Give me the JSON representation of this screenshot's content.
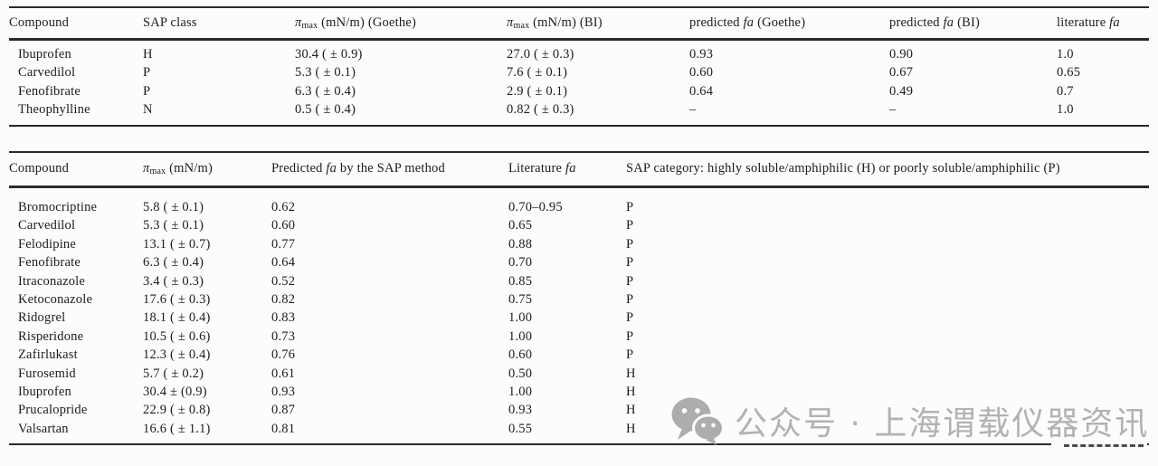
{
  "page": {
    "background": "#fcfcfb",
    "text_color": "#1c1c1c",
    "rule_color": "#2a2a2a"
  },
  "table1": {
    "headers": [
      [
        {
          "t": "Compound"
        }
      ],
      [
        {
          "t": "SAP class"
        }
      ],
      [
        {
          "t": "π",
          "i": true
        },
        {
          "t": "max",
          "sub": true
        },
        {
          "t": " (mN/m) (Goethe)"
        }
      ],
      [
        {
          "t": "π",
          "i": true
        },
        {
          "t": "max",
          "sub": true
        },
        {
          "t": " (mN/m) (BI)"
        }
      ],
      [
        {
          "t": "predicted "
        },
        {
          "t": "fa",
          "i": true
        },
        {
          "t": " (Goethe)"
        }
      ],
      [
        {
          "t": "predicted "
        },
        {
          "t": "fa",
          "i": true
        },
        {
          "t": " (BI)"
        }
      ],
      [
        {
          "t": "literature "
        },
        {
          "t": "fa",
          "i": true
        }
      ]
    ],
    "rows": [
      [
        "Ibuprofen",
        "H",
        "30.4 ( ± 0.9)",
        "27.0 ( ± 0.3)",
        "0.93",
        "0.90",
        "1.0"
      ],
      [
        "Carvedilol",
        "P",
        "5.3 ( ± 0.1)",
        "7.6 ( ± 0.1)",
        "0.60",
        "0.67",
        "0.65"
      ],
      [
        "Fenofibrate",
        "P",
        "6.3 ( ± 0.4)",
        "2.9 ( ± 0.1)",
        "0.64",
        "0.49",
        "0.7"
      ],
      [
        "Theophylline",
        "N",
        "0.5 ( ± 0.4)",
        "0.82 ( ± 0.3)",
        "–",
        "–",
        "1.0"
      ]
    ]
  },
  "table2": {
    "headers": [
      [
        {
          "t": "Compound"
        }
      ],
      [
        {
          "t": "π",
          "i": true
        },
        {
          "t": "max",
          "sub": true
        },
        {
          "t": " (mN/m)"
        }
      ],
      [
        {
          "t": "Predicted "
        },
        {
          "t": "fa",
          "i": true
        },
        {
          "t": " by the SAP method"
        }
      ],
      [
        {
          "t": "Literature "
        },
        {
          "t": "fa",
          "i": true
        }
      ],
      [
        {
          "t": "SAP category: highly soluble/amphiphilic (H) or poorly soluble/amphiphilic (P)"
        }
      ]
    ],
    "rows": [
      [
        "Bromocriptine",
        "5.8 ( ± 0.1)",
        "0.62",
        "0.70–0.95",
        "P"
      ],
      [
        "Carvedilol",
        "5.3 ( ± 0.1)",
        "0.60",
        "0.65",
        "P"
      ],
      [
        "Felodipine",
        "13.1 ( ± 0.7)",
        "0.77",
        "0.88",
        "P"
      ],
      [
        "Fenofibrate",
        "6.3 ( ± 0.4)",
        "0.64",
        "0.70",
        "P"
      ],
      [
        "Itraconazole",
        "3.4 ( ± 0.3)",
        "0.52",
        "0.85",
        "P"
      ],
      [
        "Ketoconazole",
        "17.6 ( ± 0.3)",
        "0.82",
        "0.75",
        "P"
      ],
      [
        "Ridogrel",
        "18.1 ( ± 0.4)",
        "0.83",
        "1.00",
        "P"
      ],
      [
        "Risperidone",
        "10.5 ( ± 0.6)",
        "0.73",
        "1.00",
        "P"
      ],
      [
        "Zafirlukast",
        "12.3 ( ± 0.4)",
        "0.76",
        "0.60",
        "P"
      ],
      [
        "Furosemid",
        "5.7 ( ± 0.2)",
        "0.61",
        "0.50",
        "H"
      ],
      [
        "Ibuprofen",
        "30.4 ± (0.9)",
        "0.93",
        "1.00",
        "H"
      ],
      [
        "Prucalopride",
        "22.9 ( ± 0.8)",
        "0.87",
        "0.93",
        "H"
      ],
      [
        "Valsartan",
        "16.6 ( ± 1.1)",
        "0.81",
        "0.55",
        "H"
      ]
    ]
  },
  "watermark": {
    "icon": "wechat-icon",
    "text": "公众号 · 上海谓载仪器资讯",
    "color": "#b2b2b2"
  }
}
